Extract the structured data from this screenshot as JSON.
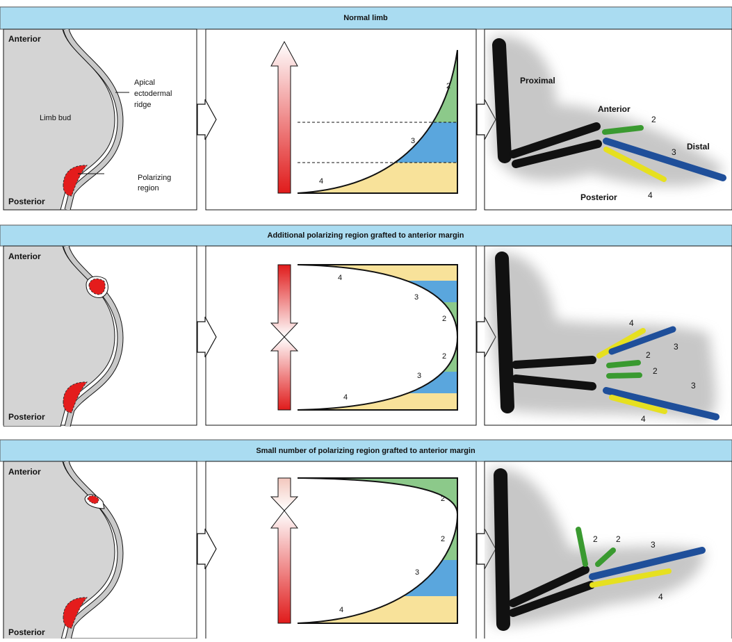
{
  "rows": [
    {
      "title": "Normal limb",
      "limb_bud": {
        "anterior": "Anterior",
        "posterior": "Posterior",
        "body": "Limb bud",
        "aer": [
          "Apical",
          "ectodermal",
          "ridge"
        ],
        "polarizing": [
          "Polarizing",
          "region"
        ]
      },
      "gradient_labels": [
        "2",
        "3",
        "4"
      ],
      "photo_labels": [
        "Proximal",
        "Anterior",
        "2",
        "3",
        "Distal",
        "Posterior",
        "4"
      ]
    },
    {
      "title": "Additional polarizing region grafted to anterior margin",
      "limb_bud": {
        "anterior": "Anterior",
        "posterior": "Posterior"
      },
      "gradient_labels": [
        "4",
        "3",
        "2",
        "2",
        "3",
        "4"
      ],
      "photo_labels": [
        "4",
        "3",
        "2",
        "2",
        "3",
        "4"
      ]
    },
    {
      "title": "Small number of polarizing region grafted to anterior margin",
      "limb_bud": {
        "anterior": "Anterior",
        "posterior": "Posterior"
      },
      "gradient_labels": [
        "2",
        "2",
        "3",
        "4"
      ],
      "photo_labels": [
        "2",
        "2",
        "3",
        "4"
      ]
    }
  ]
}
